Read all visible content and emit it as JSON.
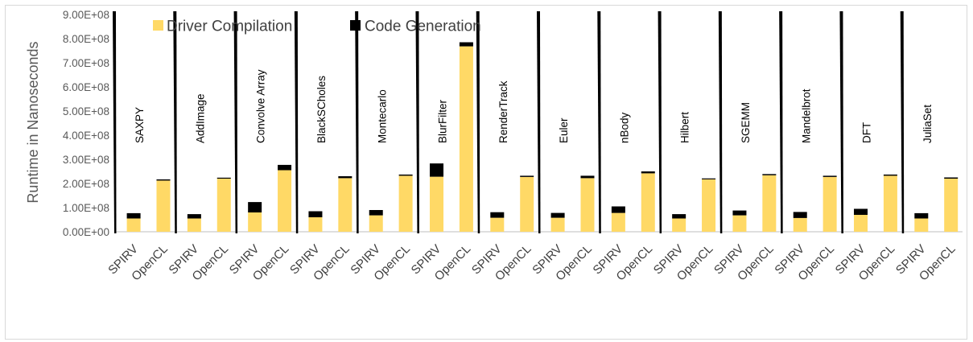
{
  "chart_data": {
    "type": "bar",
    "stacked": true,
    "ylabel": "Runtime in Nanoseconds",
    "xlabel": "",
    "title": "",
    "ylim": [
      0,
      900000000
    ],
    "yticks": [
      "0.00E+00",
      "1.00E+08",
      "2.00E+08",
      "3.00E+08",
      "4.00E+08",
      "5.00E+08",
      "6.00E+08",
      "7.00E+08",
      "8.00E+08",
      "9.00E+08"
    ],
    "grid": false,
    "legend_position": "top-left",
    "colors": {
      "driver": "#FFD966",
      "codegen": "#000000"
    },
    "groups": [
      "SAXPY",
      "AddImage",
      "Convolve Array",
      "BlackSCholes",
      "Montecarlo",
      "BlurFilter",
      "RenderTrack",
      "Euler",
      "nBody",
      "Hilbert",
      "SGEMM",
      "Mandelbrot",
      "DFT",
      "JuliaSet"
    ],
    "bar_labels": [
      "SPIRV",
      "OpenCL"
    ],
    "series": [
      {
        "name": "Driver Compilation",
        "values": [
          [
            55000000,
            212000000
          ],
          [
            55000000,
            220000000
          ],
          [
            80000000,
            255000000
          ],
          [
            60000000,
            222000000
          ],
          [
            68000000,
            232000000
          ],
          [
            228000000,
            768000000
          ],
          [
            58000000,
            227000000
          ],
          [
            58000000,
            222000000
          ],
          [
            78000000,
            242000000
          ],
          [
            55000000,
            217000000
          ],
          [
            68000000,
            234000000
          ],
          [
            57000000,
            227000000
          ],
          [
            70000000,
            232000000
          ],
          [
            55000000,
            220000000
          ]
        ]
      },
      {
        "name": "Code Generation",
        "values": [
          [
            22000000,
            5000000
          ],
          [
            18000000,
            4000000
          ],
          [
            43000000,
            22000000
          ],
          [
            25000000,
            8000000
          ],
          [
            22000000,
            5000000
          ],
          [
            55000000,
            17000000
          ],
          [
            23000000,
            5000000
          ],
          [
            20000000,
            10000000
          ],
          [
            27000000,
            8000000
          ],
          [
            18000000,
            4000000
          ],
          [
            20000000,
            5000000
          ],
          [
            25000000,
            5000000
          ],
          [
            25000000,
            5000000
          ],
          [
            22000000,
            5000000
          ]
        ]
      }
    ]
  }
}
